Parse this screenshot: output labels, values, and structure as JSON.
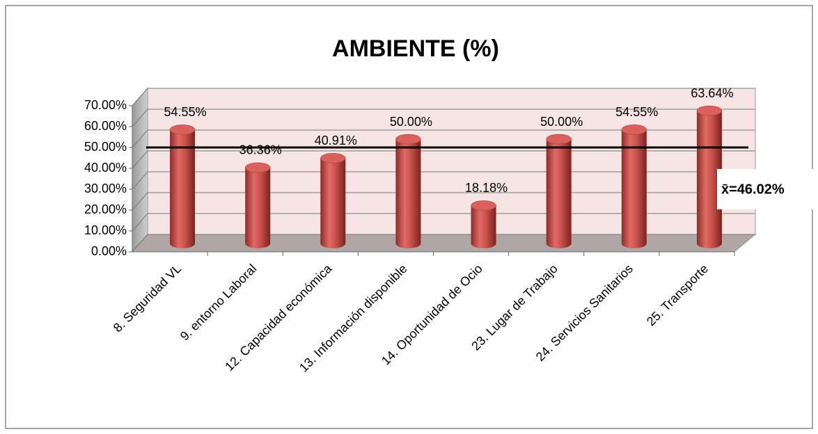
{
  "chart_data": {
    "type": "bar",
    "title": "AMBIENTE (%)",
    "categories": [
      "8. Seguridad VL",
      "9. entorno Laboral",
      "12. Capacidad económica",
      "13. Información disponible",
      "14. Oportunidad de Ocio",
      "23. Lugar de Trabajo",
      "24. Servicios Sanitarios",
      "25. Transporte"
    ],
    "values": [
      54.55,
      36.36,
      40.91,
      50,
      18.18,
      50,
      54.55,
      63.64
    ],
    "value_labels": [
      "54.55%",
      "36.36%",
      "40.91%",
      "50.00%",
      "18.18%",
      "50.00%",
      "54.55%",
      "63.64%"
    ],
    "color": "#c0504d",
    "ylim": [
      0,
      70
    ],
    "yticks": [
      {
        "value": 0,
        "label": "0.00%"
      },
      {
        "value": 10,
        "label": "10.00%"
      },
      {
        "value": 20,
        "label": "20.00%"
      },
      {
        "value": 30,
        "label": "30.00%"
      },
      {
        "value": 40,
        "label": "40.00%"
      },
      {
        "value": 50,
        "label": "50.00%"
      },
      {
        "value": 60,
        "label": "60.00%"
      },
      {
        "value": 70,
        "label": "70.00%"
      }
    ],
    "grid": true,
    "mean": 46.02,
    "mean_label": "x̄=46.02%"
  }
}
